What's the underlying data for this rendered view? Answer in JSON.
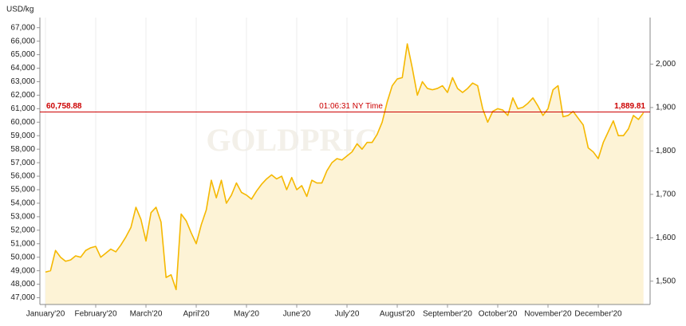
{
  "chart_data": {
    "type": "line",
    "y_label": "USD/kg",
    "watermark": "GOLDPRICE.ORG",
    "categories": [
      "January'20",
      null,
      null,
      null,
      null,
      null,
      null,
      null,
      null,
      null,
      "February'20",
      null,
      null,
      null,
      null,
      null,
      null,
      null,
      null,
      null,
      "March'20",
      null,
      null,
      null,
      null,
      null,
      null,
      null,
      null,
      null,
      "April'20",
      null,
      null,
      null,
      null,
      null,
      null,
      null,
      null,
      null,
      "May'20",
      null,
      null,
      null,
      null,
      null,
      null,
      null,
      null,
      null,
      "June'20",
      null,
      null,
      null,
      null,
      null,
      null,
      null,
      null,
      null,
      "July'20",
      null,
      null,
      null,
      null,
      null,
      null,
      null,
      null,
      null,
      "August'20",
      null,
      null,
      null,
      null,
      null,
      null,
      null,
      null,
      null,
      "September'20",
      null,
      null,
      null,
      null,
      null,
      null,
      null,
      null,
      null,
      "October'20",
      null,
      null,
      null,
      null,
      null,
      null,
      null,
      null,
      null,
      "November'20",
      null,
      null,
      null,
      null,
      null,
      null,
      null,
      null,
      null,
      "December'20",
      null,
      null,
      null,
      null,
      null,
      null,
      null,
      null,
      null
    ],
    "series": [
      {
        "color": "#f5b800",
        "fill_color": "#fdf3d6",
        "values": [
          48900,
          49000,
          50500,
          50000,
          49700,
          49800,
          50100,
          50000,
          50500,
          50700,
          50800,
          50000,
          50300,
          50600,
          50400,
          50900,
          51500,
          52200,
          53700,
          52800,
          51200,
          53300,
          53700,
          52600,
          48500,
          48700,
          47600,
          53200,
          52700,
          51800,
          51000,
          52400,
          53500,
          55700,
          54400,
          55700,
          54000,
          54600,
          55500,
          54800,
          54600,
          54300,
          54900,
          55400,
          55800,
          56100,
          55800,
          56000,
          55000,
          55900,
          55000,
          55300,
          54500,
          55700,
          55500,
          55500,
          56400,
          57000,
          57300,
          57200,
          57500,
          57800,
          58400,
          58000,
          58500,
          58500,
          59100,
          60000,
          61500,
          62700,
          63200,
          63300,
          65800,
          64000,
          62000,
          63000,
          62500,
          62400,
          62500,
          62700,
          62200,
          63300,
          62500,
          62200,
          62500,
          62900,
          62700,
          61000,
          60000,
          60800,
          61000,
          60900,
          60500,
          61800,
          61000,
          61100,
          61400,
          61800,
          61200,
          60500,
          61000,
          62400,
          62700,
          60400,
          60500,
          60800,
          60300,
          59800,
          58100,
          57800,
          57300,
          58500,
          59300,
          60100,
          59000,
          59000,
          59500,
          60500,
          60200,
          60700
        ]
      }
    ],
    "ylim": [
      46500,
      67750
    ],
    "yticks": [
      {
        "value": 47000,
        "label": "47,000"
      },
      {
        "value": 48000,
        "label": "48,000"
      },
      {
        "value": 49000,
        "label": "49,000"
      },
      {
        "value": 50000,
        "label": "50,000"
      },
      {
        "value": 51000,
        "label": "51,000"
      },
      {
        "value": 52000,
        "label": "52,000"
      },
      {
        "value": 53000,
        "label": "53,000"
      },
      {
        "value": 54000,
        "label": "54,000"
      },
      {
        "value": 55000,
        "label": "55,000"
      },
      {
        "value": 56000,
        "label": "56,000"
      },
      {
        "value": 57000,
        "label": "57,000"
      },
      {
        "value": 58000,
        "label": "58,000"
      },
      {
        "value": 59000,
        "label": "59,000"
      },
      {
        "value": 60000,
        "label": "60,000"
      },
      {
        "value": 61000,
        "label": "61,000"
      },
      {
        "value": 62000,
        "label": "62,000"
      },
      {
        "value": 63000,
        "label": "63,000"
      },
      {
        "value": 64000,
        "label": "64,000"
      },
      {
        "value": 65000,
        "label": "65,000"
      },
      {
        "value": 66000,
        "label": "66,000"
      },
      {
        "value": 67000,
        "label": "67,000"
      }
    ],
    "y2lim": [
      1446.3,
      2107.3
    ],
    "y2ticks": [
      {
        "value": 1500,
        "label": "1,500"
      },
      {
        "value": 1600,
        "label": "1,600"
      },
      {
        "value": 1700,
        "label": "1,700"
      },
      {
        "value": 1800,
        "label": "1,800"
      },
      {
        "value": 1900,
        "label": "1,900"
      },
      {
        "value": 2000,
        "label": "2,000"
      }
    ],
    "current": {
      "value": 60758.88,
      "label": "60,758.88",
      "y2_value": 1889.81,
      "y2_label": "1,889.81",
      "time": "01:06:31 NY Time",
      "color": "#cc0000"
    }
  }
}
